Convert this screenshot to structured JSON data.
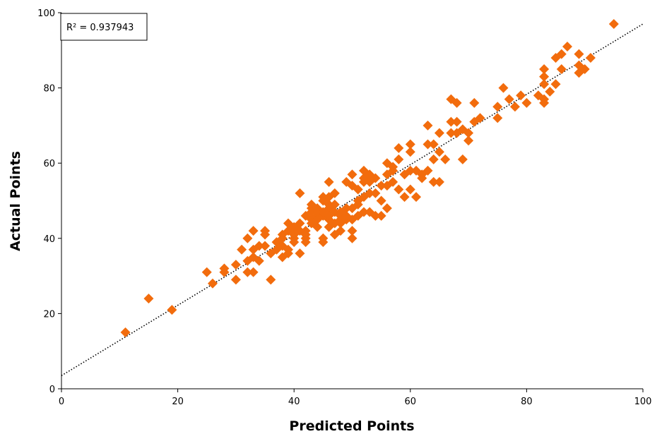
{
  "chart_data": {
    "type": "scatter",
    "title": "",
    "xlabel": "Predicted Points",
    "ylabel": "Actual Points",
    "xlim": [
      0,
      100
    ],
    "ylim": [
      0,
      100
    ],
    "xticks": [
      "0",
      "20",
      "40",
      "60",
      "80",
      "100"
    ],
    "yticks": [
      "0",
      "20",
      "40",
      "60",
      "80",
      "100"
    ],
    "grid": false,
    "annotation": "R² = 0.937943",
    "marker": "diamond",
    "marker_color": "#f26c0d",
    "trendline": {
      "style": "dotted",
      "color": "#000000",
      "intercept": 3.5,
      "slope": 0.935
    },
    "series": [
      {
        "x": [
          11,
          15,
          19,
          25,
          26,
          28,
          28,
          30,
          30,
          31,
          32,
          32,
          32,
          33,
          33,
          33,
          33,
          34,
          34,
          35,
          35,
          35,
          36,
          36,
          37,
          37,
          38,
          38,
          38,
          38,
          39,
          39,
          39,
          39,
          40,
          40,
          40,
          40,
          41,
          41,
          41,
          41,
          42,
          42,
          42,
          42,
          42,
          43,
          43,
          43,
          43,
          43,
          44,
          44,
          44,
          44,
          44,
          45,
          45,
          45,
          45,
          45,
          45,
          46,
          46,
          46,
          46,
          46,
          46,
          46,
          47,
          47,
          47,
          47,
          47,
          48,
          48,
          48,
          48,
          48,
          49,
          49,
          49,
          49,
          50,
          50,
          50,
          50,
          50,
          50,
          51,
          51,
          51,
          51,
          52,
          52,
          52,
          52,
          52,
          53,
          53,
          53,
          53,
          54,
          54,
          54,
          55,
          55,
          55,
          56,
          56,
          56,
          56,
          57,
          57,
          57,
          58,
          58,
          58,
          59,
          59,
          60,
          60,
          60,
          60,
          61,
          61,
          62,
          62,
          63,
          63,
          63,
          64,
          64,
          64,
          65,
          65,
          65,
          66,
          67,
          67,
          67,
          68,
          68,
          68,
          69,
          69,
          70,
          70,
          71,
          71,
          72,
          75,
          75,
          76,
          77,
          78,
          79,
          80,
          82,
          83,
          83,
          83,
          83,
          83,
          84,
          85,
          85,
          86,
          86,
          87,
          89,
          89,
          89,
          90,
          91,
          95
        ],
        "y": [
          15,
          24,
          21,
          31,
          28,
          31,
          32,
          29,
          33,
          37,
          34,
          31,
          40,
          31,
          37,
          42,
          35,
          38,
          34,
          41,
          42,
          38,
          29,
          36,
          39,
          37,
          40,
          35,
          38,
          41,
          37,
          36,
          42,
          44,
          40,
          41,
          39,
          43,
          52,
          36,
          42,
          44,
          39,
          42,
          46,
          40,
          41,
          45,
          44,
          48,
          49,
          47,
          43,
          46,
          45,
          48,
          47,
          51,
          39,
          40,
          46,
          47,
          50,
          55,
          49,
          43,
          45,
          48,
          51,
          46,
          41,
          44,
          47,
          49,
          52,
          42,
          45,
          46,
          44,
          47,
          45,
          46,
          55,
          48,
          40,
          42,
          45,
          48,
          54,
          57,
          46,
          50,
          49,
          53,
          51,
          47,
          55,
          56,
          58,
          47,
          52,
          55,
          57,
          46,
          52,
          56,
          50,
          46,
          54,
          48,
          57,
          54,
          60,
          58,
          55,
          59,
          53,
          61,
          64,
          51,
          57,
          53,
          58,
          63,
          65,
          51,
          58,
          57,
          56,
          70,
          65,
          58,
          55,
          61,
          65,
          68,
          63,
          55,
          61,
          77,
          68,
          71,
          76,
          68,
          71,
          61,
          69,
          66,
          68,
          71,
          76,
          72,
          72,
          75,
          80,
          77,
          75,
          78,
          76,
          78,
          76,
          77,
          81,
          83,
          85,
          79,
          88,
          81,
          85,
          89,
          91,
          84,
          86,
          89,
          85,
          88,
          97
        ]
      }
    ]
  }
}
